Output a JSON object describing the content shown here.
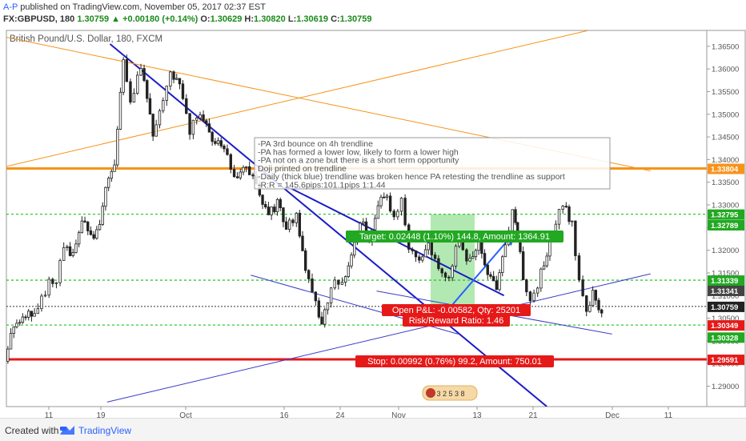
{
  "header": {
    "author": "A-P",
    "published": "published on TradingView.com, November 05, 2017 02:37 EST",
    "symbol": "FX:GBPUSD, 180",
    "last": "1.30759",
    "change": "+0.00180 (+0.14%)",
    "o_label": "O:",
    "o": "1.30629",
    "h_label": "H:",
    "h": "1.30820",
    "l_label": "L:",
    "l": "1.30619",
    "c_label": "C:",
    "c": "1.30759"
  },
  "footer": {
    "created_with": "Created with",
    "brand": "TradingView"
  },
  "chart_data": {
    "type": "candlestick",
    "title": "British Pound/U.S. Dollar, 180, FXCM",
    "ylim": [
      1.2855,
      1.3685
    ],
    "y_ticks": [
      1.29,
      1.295,
      1.3,
      1.305,
      1.31,
      1.315,
      1.32,
      1.325,
      1.33,
      1.335,
      1.34,
      1.345,
      1.35,
      1.355,
      1.36,
      1.365
    ],
    "x_ticks": [
      "11",
      "19",
      "Oct",
      "16",
      "24",
      "Nov",
      "13",
      "21",
      "Dec",
      "11"
    ],
    "price_path": [
      [
        0,
        1.2955
      ],
      [
        0.4,
        1.302
      ],
      [
        1,
        1.3035
      ],
      [
        1.6,
        1.307
      ],
      [
        2,
        1.306
      ],
      [
        3,
        1.3125
      ],
      [
        3.5,
        1.313
      ],
      [
        4,
        1.321
      ],
      [
        4.6,
        1.319
      ],
      [
        5.2,
        1.3275
      ],
      [
        6,
        1.322
      ],
      [
        6.4,
        1.3255
      ],
      [
        6.8,
        1.3345
      ],
      [
        7.4,
        1.3385
      ],
      [
        8,
        1.362
      ],
      [
        8.5,
        1.353
      ],
      [
        9.2,
        1.36
      ],
      [
        10,
        1.346
      ],
      [
        10.7,
        1.354
      ],
      [
        11.2,
        1.3595
      ],
      [
        11.8,
        1.3565
      ],
      [
        12.5,
        1.3465
      ],
      [
        13.2,
        1.3505
      ],
      [
        14,
        1.345
      ],
      [
        14.8,
        1.342
      ],
      [
        15.5,
        1.3365
      ],
      [
        16.3,
        1.3385
      ],
      [
        17,
        1.3345
      ],
      [
        17.8,
        1.3275
      ],
      [
        18.4,
        1.3305
      ],
      [
        19,
        1.3255
      ],
      [
        19.7,
        1.3275
      ],
      [
        20.3,
        1.316
      ],
      [
        21,
        1.308
      ],
      [
        21.4,
        1.3035
      ],
      [
        21.8,
        1.3085
      ],
      [
        22.3,
        1.313
      ],
      [
        22.8,
        1.312
      ],
      [
        23.4,
        1.318
      ],
      [
        24,
        1.3265
      ],
      [
        24.6,
        1.3225
      ],
      [
        25.2,
        1.3305
      ],
      [
        25.8,
        1.332
      ],
      [
        26.3,
        1.3265
      ],
      [
        26.8,
        1.331
      ],
      [
        27.3,
        1.3205
      ],
      [
        28,
        1.3175
      ],
      [
        28.6,
        1.3215
      ],
      [
        29.3,
        1.316
      ],
      [
        30,
        1.3135
      ],
      [
        30.7,
        1.323
      ],
      [
        31.2,
        1.317
      ],
      [
        32,
        1.322
      ],
      [
        32.6,
        1.3145
      ],
      [
        33.2,
        1.3115
      ],
      [
        33.8,
        1.321
      ],
      [
        34.3,
        1.3285
      ],
      [
        34.6,
        1.324
      ],
      [
        35,
        1.314
      ],
      [
        35.5,
        1.309
      ],
      [
        36,
        1.3125
      ],
      [
        36.6,
        1.3195
      ],
      [
        37.2,
        1.3255
      ],
      [
        37.7,
        1.3305
      ],
      [
        38.3,
        1.3255
      ],
      [
        38.8,
        1.3135
      ],
      [
        39.3,
        1.3055
      ],
      [
        39.7,
        1.3105
      ],
      [
        40.3,
        1.306
      ]
    ],
    "horizontal_levels": [
      {
        "price": 1.33804,
        "color": "#f7931a",
        "style": "thick"
      },
      {
        "price": 1.32795,
        "color": "#2ecc2e",
        "style": "dashed"
      },
      {
        "price": 1.31339,
        "color": "#2ecc2e",
        "style": "dashed"
      },
      {
        "price": 1.30759,
        "color": "#333333",
        "style": "dotted"
      },
      {
        "price": 1.30349,
        "color": "#2ecc2e",
        "style": "dashed"
      },
      {
        "price": 1.29591,
        "color": "#e61919",
        "style": "thick"
      }
    ],
    "price_labels": [
      {
        "text": "1.33804",
        "price": 1.33804,
        "color": "#f7931a"
      },
      {
        "text": "1.32795",
        "price": 1.32795,
        "color": "#22a822"
      },
      {
        "text": "1.32789",
        "price": 1.32789,
        "color": "#22a822"
      },
      {
        "text": "1.31339",
        "price": 1.31339,
        "color": "#22a822"
      },
      {
        "text": "1.31341",
        "price": 1.31341,
        "color": "#444444"
      },
      {
        "text": "1.30759",
        "price": 1.30759,
        "color": "#222222"
      },
      {
        "text": "1.30349",
        "price": 1.30349,
        "color": "#e61919"
      },
      {
        "text": "1.30328",
        "price": 1.30328,
        "color": "#22a822"
      },
      {
        "text": "1.29591",
        "price": 1.29591,
        "color": "#e61919"
      }
    ],
    "trendlines": [
      {
        "from": [
          7.0,
          1.3655
        ],
        "to": [
          36.5,
          1.2855
        ],
        "color": "#1c1cc8",
        "width": 2
      },
      {
        "from": [
          19.0,
          1.334
        ],
        "to": [
          33.6,
          1.31
        ],
        "color": "#1c1cc8",
        "width": 2
      },
      {
        "from": [
          16.5,
          1.3145
        ],
        "to": [
          30.5,
          1.3015
        ],
        "color": "#3b3bc8",
        "width": 1
      },
      {
        "from": [
          25.0,
          1.311
        ],
        "to": [
          40.9,
          1.3015
        ],
        "color": "#3b3bc8",
        "width": 1
      },
      {
        "from": [
          6.8,
          1.2865
        ],
        "to": [
          43.5,
          1.3148
        ],
        "color": "#3b3bc8",
        "width": 1
      },
      {
        "from": [
          0,
          1.3385
        ],
        "to": [
          39.3,
          1.3685
        ],
        "color": "#f7931a",
        "width": 1
      },
      {
        "from": [
          0,
          1.367
        ],
        "to": [
          43.5,
          1.3375
        ],
        "color": "#f7931a",
        "width": 1
      },
      {
        "from": [
          29.6,
          1.306
        ],
        "to": [
          34.2,
          1.3235
        ],
        "color": "#2962ff",
        "width": 2,
        "arrow": true
      }
    ],
    "note": "-PA 3rd bounce on 4h trendline\n-PA has formed a lower low, likely to form a lower high\n-PA not on a zone but there is a short term opportunity\nDoji printed on trendline\n-Daily (thick blue) trendline was broken hence PA retesting the trendline as support\n-R:R = 145.6pips:101.1pips 1:1.44",
    "position": {
      "entry": 1.30759,
      "target": 1.32795,
      "stop": 1.30349,
      "target_label": "Target: 0.02448 (1.10%) 144.8, Amount: 1364.91",
      "open_pnl_label": "Open P&L: -0.00582, Qty: 25201",
      "rr_label": "Risk/Reward Ratio: 1.46",
      "stop_label": "Stop: 0.00992 (0.76%) 99.2, Amount: 750.01"
    },
    "events_label": "3 2 5 3 8"
  }
}
